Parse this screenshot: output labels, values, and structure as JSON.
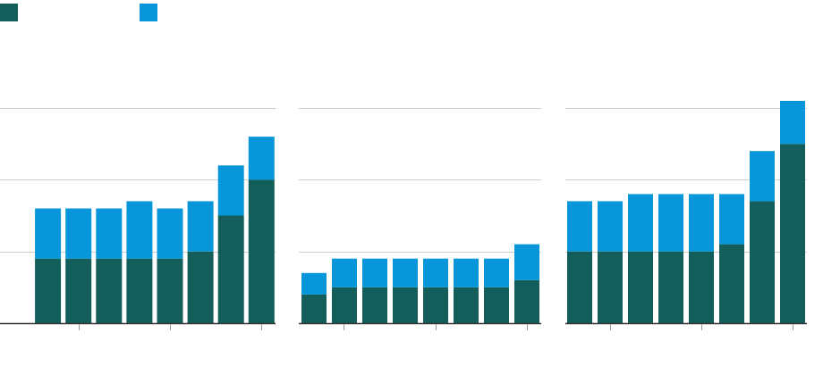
{
  "colors": {
    "series_a": "#135e5a",
    "series_b": "#0796d9",
    "gridline": "#cccccc",
    "axis": "#333333",
    "tick": "#999999"
  },
  "legend": [
    {
      "name": "",
      "color": "#135e5a"
    },
    {
      "name": "",
      "color": "#0796d9"
    }
  ],
  "chart_data": [
    {
      "type": "bar",
      "stacked": true,
      "categories": [
        "",
        "",
        "",
        "",
        "",
        "",
        "",
        "",
        ""
      ],
      "series": [
        {
          "values": [
            0,
            9,
            9,
            9,
            9,
            9,
            10,
            15,
            20
          ]
        },
        {
          "values": [
            0,
            7,
            7,
            7,
            8,
            7,
            7,
            7,
            6
          ]
        }
      ],
      "ylim": [
        0,
        30
      ],
      "grid": true
    },
    {
      "type": "bar",
      "stacked": true,
      "categories": [
        "",
        "",
        "",
        "",
        "",
        "",
        "",
        ""
      ],
      "series": [
        {
          "values": [
            4,
            5,
            5,
            5,
            5,
            5,
            5,
            6
          ]
        },
        {
          "values": [
            3,
            4,
            4,
            4,
            4,
            4,
            4,
            5
          ]
        }
      ],
      "ylim": [
        0,
        30
      ],
      "grid": true
    },
    {
      "type": "bar",
      "stacked": true,
      "categories": [
        "",
        "",
        "",
        "",
        "",
        "",
        "",
        ""
      ],
      "series": [
        {
          "values": [
            10,
            10,
            10,
            10,
            10,
            11,
            17,
            25
          ]
        },
        {
          "values": [
            7,
            7,
            8,
            8,
            8,
            7,
            7,
            6
          ]
        }
      ],
      "ylim": [
        0,
        30
      ],
      "grid": true
    }
  ]
}
